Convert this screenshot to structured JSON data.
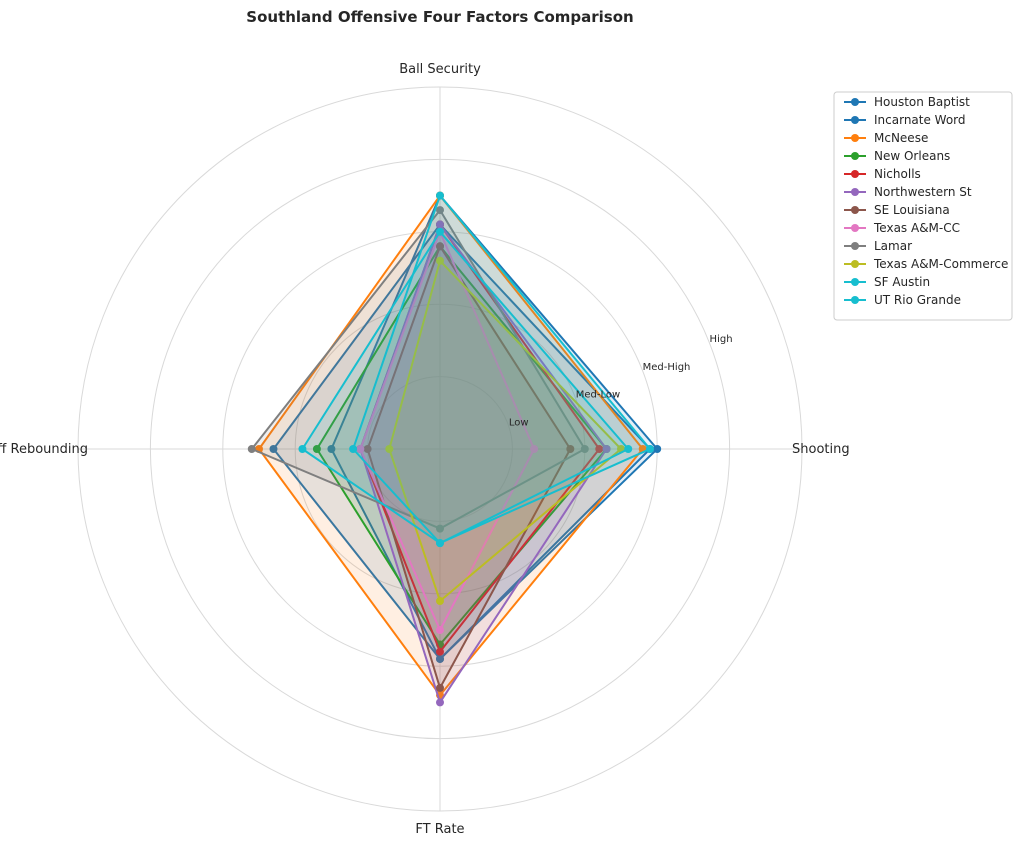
{
  "chart_data": {
    "type": "radar",
    "title": "Southland Offensive Four Factors Comparison",
    "axes": [
      "Ball Security",
      "Shooting",
      "FT Rate",
      "Off Rebounding"
    ],
    "ring_labels": [
      "Low",
      "Med-Low",
      "Med-High",
      "High"
    ],
    "rmax": 5,
    "grid": true,
    "legend_position": "top-right",
    "series": [
      {
        "name": "Houston Baptist",
        "color": "#1f77b4",
        "values": [
          3.1,
          2.9,
          2.9,
          2.3
        ]
      },
      {
        "name": "Incarnate Word",
        "color": "#1f77b4",
        "values": [
          3.5,
          3.0,
          2.9,
          1.5
        ]
      },
      {
        "name": "McNeese",
        "color": "#ff7f0e",
        "values": [
          3.5,
          2.8,
          3.4,
          2.5
        ]
      },
      {
        "name": "New Orleans",
        "color": "#2ca02c",
        "values": [
          2.8,
          2.3,
          2.7,
          1.7
        ]
      },
      {
        "name": "Nicholls",
        "color": "#d62728",
        "values": [
          3.1,
          2.2,
          2.8,
          1.1
        ]
      },
      {
        "name": "Northwestern St",
        "color": "#9467bd",
        "values": [
          3.1,
          2.3,
          3.5,
          1.1
        ]
      },
      {
        "name": "SE Louisiana",
        "color": "#8c564b",
        "values": [
          2.8,
          1.8,
          3.3,
          1.0
        ]
      },
      {
        "name": "Texas A&M-CC",
        "color": "#e377c2",
        "values": [
          3.0,
          1.3,
          2.5,
          1.1
        ]
      },
      {
        "name": "Lamar",
        "color": "#7f7f7f",
        "values": [
          3.3,
          2.0,
          1.1,
          2.6
        ]
      },
      {
        "name": "Texas A&M-Commerce",
        "color": "#bcbd22",
        "values": [
          2.6,
          2.5,
          2.1,
          0.7
        ]
      },
      {
        "name": "SF Austin",
        "color": "#17becf",
        "values": [
          3.5,
          2.9,
          1.3,
          1.2
        ]
      },
      {
        "name": "UT Rio Grande",
        "color": "#17becf",
        "values": [
          3.0,
          2.6,
          1.3,
          1.9
        ]
      }
    ]
  }
}
